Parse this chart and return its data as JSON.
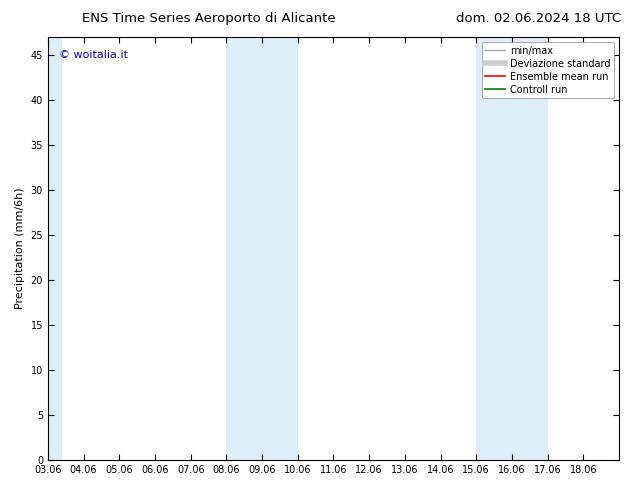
{
  "title_left": "ENS Time Series Aeroporto di Alicante",
  "title_right": "dom. 02.06.2024 18 UTC",
  "ylabel": "Precipitation (mm/6h)",
  "watermark": "© woitalia.it",
  "xlim_min": 0,
  "xlim_max": 16,
  "ylim_min": 0,
  "ylim_max": 47,
  "yticks": [
    0,
    5,
    10,
    15,
    20,
    25,
    30,
    35,
    40,
    45
  ],
  "xtick_labels": [
    "03.06",
    "04.06",
    "05.06",
    "06.06",
    "07.06",
    "08.06",
    "09.06",
    "10.06",
    "11.06",
    "12.06",
    "13.06",
    "14.06",
    "15.06",
    "16.06",
    "17.06",
    "18.06"
  ],
  "shaded_bands": [
    {
      "x_start": 0.0,
      "x_end": 0.4,
      "color": "#ddeef8"
    },
    {
      "x_start": 5.0,
      "x_end": 7.0,
      "color": "#ddeef8"
    },
    {
      "x_start": 12.0,
      "x_end": 14.0,
      "color": "#ddeef8"
    }
  ],
  "legend_entries": [
    {
      "label": "min/max",
      "color": "#aaaaaa",
      "lw": 1.0,
      "ls": "-"
    },
    {
      "label": "Deviazione standard",
      "color": "#cccccc",
      "lw": 4,
      "ls": "-"
    },
    {
      "label": "Ensemble mean run",
      "color": "red",
      "lw": 1.2,
      "ls": "-"
    },
    {
      "label": "Controll run",
      "color": "green",
      "lw": 1.2,
      "ls": "-"
    }
  ],
  "bg_color": "#ffffff",
  "plot_bg_color": "#ffffff",
  "watermark_color": "#0000cc",
  "title_fontsize": 9.5,
  "tick_fontsize": 7,
  "ylabel_fontsize": 8,
  "legend_fontsize": 7,
  "watermark_fontsize": 8
}
